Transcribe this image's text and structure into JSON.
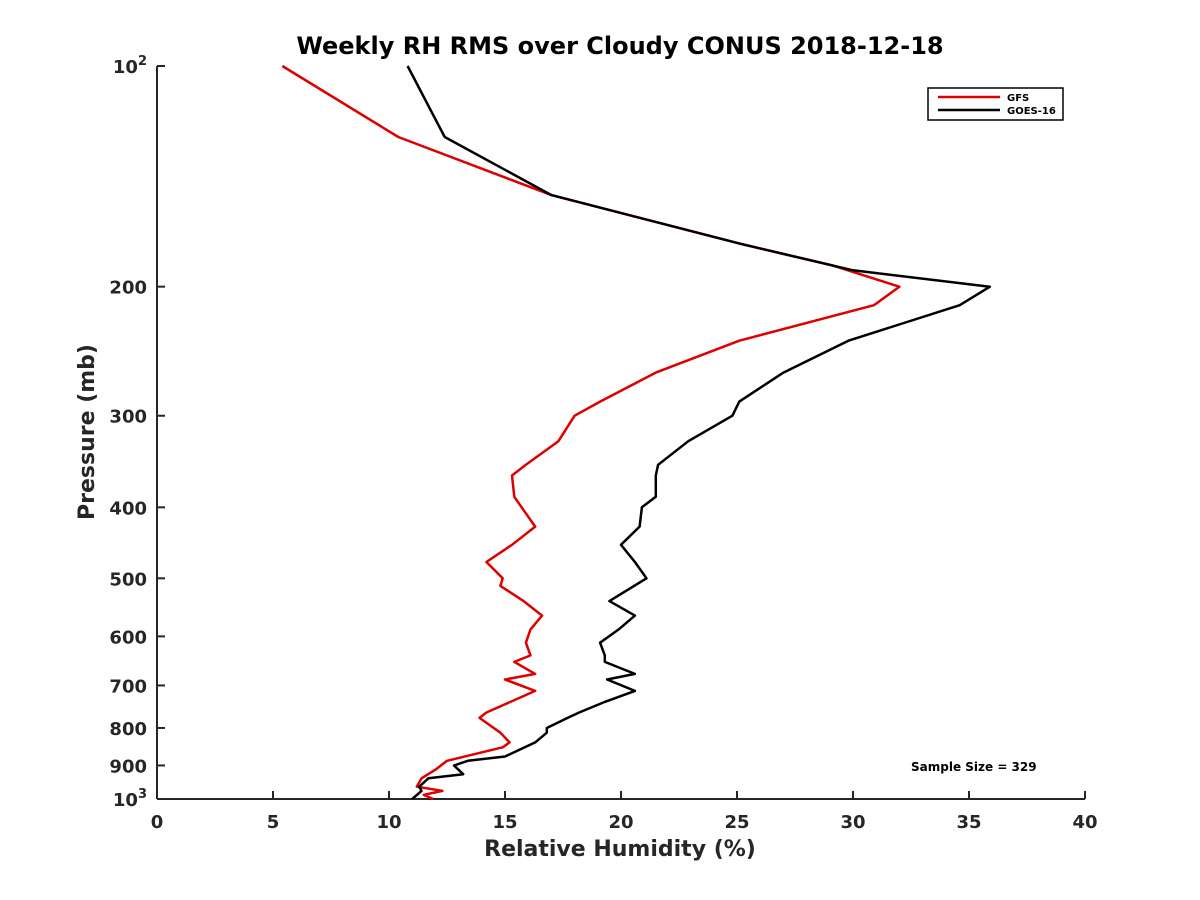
{
  "chart_data": {
    "type": "line",
    "title": "Weekly RH RMS over Cloudy CONUS 2018-12-18",
    "xlabel": "Relative Humidity (%)",
    "ylabel": "Pressure (mb)",
    "xlim": [
      0,
      40
    ],
    "ylim": [
      100,
      1000
    ],
    "yscale": "log",
    "y_reversed": true,
    "x_ticks": [
      "0",
      "5",
      "10",
      "15",
      "20",
      "25",
      "30",
      "35",
      "40"
    ],
    "y_ticks": [
      {
        "value": 100,
        "base": "10",
        "exp": "2"
      },
      {
        "value": 200,
        "label": "200"
      },
      {
        "value": 300,
        "label": "300"
      },
      {
        "value": 400,
        "label": "400"
      },
      {
        "value": 500,
        "label": "500"
      },
      {
        "value": 600,
        "label": "600"
      },
      {
        "value": 700,
        "label": "700"
      },
      {
        "value": 800,
        "label": "800"
      },
      {
        "value": 900,
        "label": "900"
      },
      {
        "value": 1000,
        "base": "10",
        "exp": "3"
      }
    ],
    "legend_position": "top-right",
    "annotation": "Sample Size = 329",
    "series": [
      {
        "name": "GFS",
        "color": "#dd0000",
        "points": [
          [
            5.4,
            100
          ],
          [
            10.4,
            125
          ],
          [
            17,
            150
          ],
          [
            25.2,
            175
          ],
          [
            29.1,
            187
          ],
          [
            32,
            200
          ],
          [
            30.9,
            212
          ],
          [
            25.1,
            237
          ],
          [
            21.5,
            262
          ],
          [
            19.1,
            287
          ],
          [
            18,
            300
          ],
          [
            17.3,
            325
          ],
          [
            15.9,
            350
          ],
          [
            15.3,
            362
          ],
          [
            15.4,
            387
          ],
          [
            16,
            412
          ],
          [
            16.3,
            425
          ],
          [
            15.3,
            450
          ],
          [
            14.2,
            475
          ],
          [
            14.9,
            500
          ],
          [
            14.8,
            512
          ],
          [
            15.8,
            537
          ],
          [
            16.6,
            562
          ],
          [
            16.1,
            587
          ],
          [
            15.9,
            612
          ],
          [
            16.1,
            637
          ],
          [
            15.4,
            650
          ],
          [
            16.3,
            675
          ],
          [
            15,
            687
          ],
          [
            16.3,
            712
          ],
          [
            14.2,
            762
          ],
          [
            13.9,
            775
          ],
          [
            14.8,
            812
          ],
          [
            15.2,
            837
          ],
          [
            14.9,
            850
          ],
          [
            12.5,
            887
          ],
          [
            12,
            912
          ],
          [
            11.4,
            937
          ],
          [
            11.2,
            962
          ],
          [
            12.3,
            975
          ],
          [
            11.5,
            987
          ],
          [
            11.9,
            1000
          ]
        ]
      },
      {
        "name": "GOES-16",
        "color": "#000000",
        "points": [
          [
            10.8,
            100
          ],
          [
            12.4,
            125
          ],
          [
            17,
            150
          ],
          [
            25.2,
            175
          ],
          [
            30,
            190
          ],
          [
            35.9,
            200
          ],
          [
            34.6,
            212
          ],
          [
            29.8,
            237
          ],
          [
            27,
            262
          ],
          [
            25.1,
            287
          ],
          [
            24.8,
            300
          ],
          [
            22.9,
            325
          ],
          [
            21.6,
            350
          ],
          [
            21.5,
            362
          ],
          [
            21.5,
            387
          ],
          [
            20.9,
            400
          ],
          [
            20.8,
            425
          ],
          [
            20,
            450
          ],
          [
            20.6,
            475
          ],
          [
            21.1,
            500
          ],
          [
            19.5,
            537
          ],
          [
            20.6,
            562
          ],
          [
            19.9,
            587
          ],
          [
            19.1,
            612
          ],
          [
            19.3,
            637
          ],
          [
            19.3,
            650
          ],
          [
            20.6,
            675
          ],
          [
            19.4,
            687
          ],
          [
            20.6,
            712
          ],
          [
            19.3,
            737
          ],
          [
            18.2,
            762
          ],
          [
            17.7,
            775
          ],
          [
            16.8,
            800
          ],
          [
            16.8,
            812
          ],
          [
            16.3,
            837
          ],
          [
            15,
            875
          ],
          [
            13.4,
            887
          ],
          [
            12.8,
            900
          ],
          [
            13.2,
            925
          ],
          [
            11.7,
            937
          ],
          [
            11.3,
            962
          ],
          [
            11.4,
            975
          ],
          [
            11,
            1000
          ]
        ]
      }
    ]
  }
}
